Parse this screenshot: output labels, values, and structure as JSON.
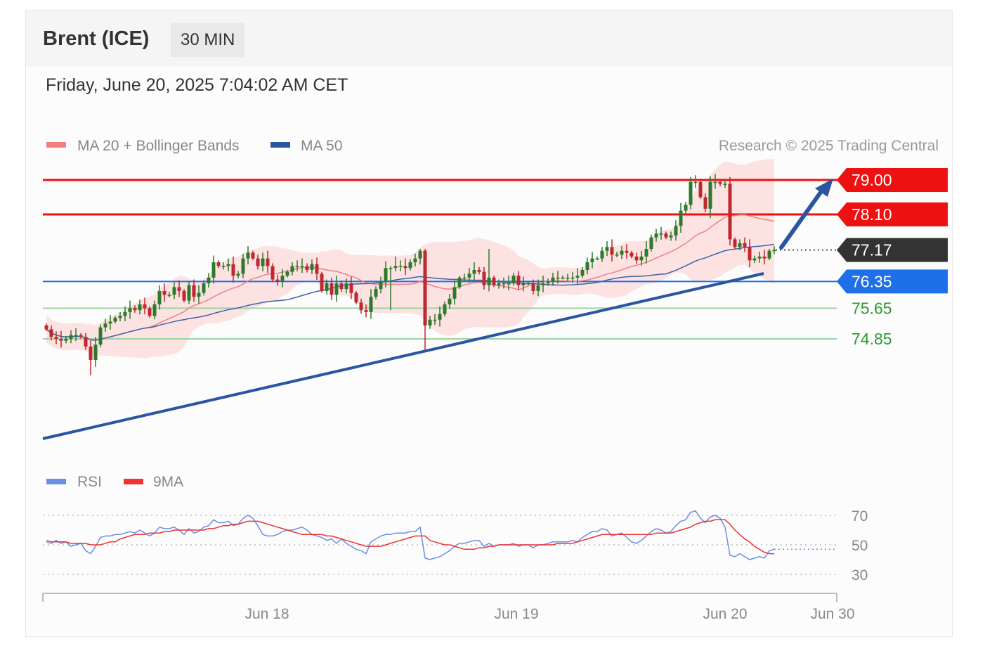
{
  "header": {
    "title": "Brent (ICE)",
    "interval": "30 MIN"
  },
  "timestamp": "Friday, June 20, 2025 7:04:02 AM CET",
  "legend": {
    "ma20": "MA 20 + Bollinger Bands",
    "ma50": "MA 50",
    "copyright": "Research © 2025 Trading Central"
  },
  "rsi_legend": {
    "rsi": "RSI",
    "ma9": "9MA"
  },
  "colors": {
    "resistance": "#ee1111",
    "last": "#333333",
    "pivot": "#1f6fe8",
    "support": "#2e9a2e",
    "support_line": "#9fd49f",
    "trend": "#2b55a0",
    "candle_up": "#2d7a2d",
    "candle_down": "#c0282f",
    "band": "#fdd9d9",
    "ma20": "#f08080",
    "ma50": "#3f62a8",
    "rsi": "#6b8fe6",
    "rsi_ma": "#ee3333"
  },
  "chart_data": [
    {
      "type": "candlestick",
      "title": "Brent (ICE) 30 MIN",
      "ylim": [
        73.0,
        79.4
      ],
      "x_tick_labels": [
        "Jun 18",
        "Jun 19",
        "Jun 20",
        "Jun 30"
      ],
      "levels": [
        {
          "kind": "resistance",
          "label": "79.00",
          "value": 79.0
        },
        {
          "kind": "resistance",
          "label": "78.10",
          "value": 78.1
        },
        {
          "kind": "last",
          "label": "77.17",
          "value": 77.17
        },
        {
          "kind": "pivot",
          "label": "76.35",
          "value": 76.35
        },
        {
          "kind": "support",
          "label": "75.65",
          "value": 75.65
        },
        {
          "kind": "support",
          "label": "74.85",
          "value": 74.85
        }
      ],
      "close": [
        75.1,
        74.9,
        74.85,
        74.8,
        74.85,
        74.95,
        74.95,
        74.9,
        74.65,
        74.3,
        74.7,
        75.15,
        75.25,
        75.3,
        75.4,
        75.45,
        75.55,
        75.65,
        75.6,
        75.75,
        75.65,
        75.45,
        75.75,
        76.1,
        76.0,
        76.0,
        76.2,
        76.1,
        75.85,
        76.25,
        75.95,
        76.05,
        76.3,
        76.45,
        76.85,
        76.75,
        76.75,
        76.8,
        76.5,
        76.55,
        76.95,
        77.1,
        76.95,
        76.75,
        76.95,
        76.75,
        76.4,
        76.35,
        76.5,
        76.6,
        76.75,
        76.75,
        76.75,
        76.65,
        76.8,
        76.55,
        76.1,
        76.3,
        76.0,
        76.3,
        76.15,
        76.3,
        76.05,
        75.8,
        75.6,
        75.55,
        75.95,
        76.15,
        76.35,
        76.7,
        76.7,
        76.75,
        76.75,
        76.7,
        76.85,
        76.95,
        77.15,
        75.2,
        75.35,
        75.35,
        75.5,
        75.75,
        75.9,
        76.2,
        76.45,
        76.45,
        76.55,
        76.65,
        76.6,
        76.25,
        76.45,
        76.25,
        76.3,
        76.3,
        76.3,
        76.5,
        76.25,
        76.3,
        76.3,
        76.1,
        76.25,
        76.3,
        76.35,
        76.45,
        76.45,
        76.45,
        76.45,
        76.45,
        76.5,
        76.65,
        76.85,
        76.95,
        76.95,
        77.15,
        77.25,
        77.05,
        77.05,
        77.15,
        77.1,
        77.0,
        76.9,
        77.0,
        77.2,
        77.5,
        77.6,
        77.6,
        77.5,
        77.55,
        77.8,
        78.2,
        78.35,
        78.95,
        78.95,
        78.55,
        78.25,
        78.95,
        78.95,
        78.9,
        78.9,
        77.45,
        77.25,
        77.35,
        77.25,
        76.9,
        76.95,
        77.0,
        76.95,
        77.15,
        77.17
      ],
      "rsi": [
        52,
        51,
        53,
        51,
        52,
        49,
        50,
        51,
        46,
        44,
        49,
        55,
        56,
        56,
        57,
        57,
        58,
        59,
        58,
        60,
        58,
        56,
        58,
        62,
        61,
        61,
        62,
        60,
        57,
        61,
        58,
        59,
        62,
        63,
        67,
        65,
        65,
        66,
        63,
        64,
        68,
        70,
        68,
        63,
        57,
        56,
        56,
        57,
        59,
        60,
        60,
        61,
        62,
        60,
        57,
        56,
        55,
        53,
        54,
        51,
        54,
        51,
        49,
        47,
        46,
        44,
        52,
        54,
        56,
        57,
        57,
        58,
        58,
        58,
        59,
        59,
        62,
        41,
        40,
        41,
        42,
        44,
        46,
        49,
        51,
        51,
        52,
        53,
        53,
        49,
        51,
        49,
        50,
        50,
        50,
        51,
        49,
        50,
        50,
        48,
        50,
        50,
        51,
        52,
        52,
        52,
        52,
        53,
        52,
        55,
        57,
        59,
        59,
        61,
        60,
        56,
        57,
        58,
        55,
        52,
        51,
        53,
        56,
        59,
        61,
        60,
        58,
        59,
        63,
        66,
        67,
        72,
        73,
        68,
        65,
        69,
        70,
        68,
        62,
        43,
        42,
        44,
        42,
        40,
        41,
        42,
        41,
        46,
        47
      ],
      "rsi_9ma": [
        53,
        52,
        52,
        52,
        52,
        51,
        51,
        51,
        51,
        50,
        50,
        50,
        51,
        52,
        52,
        54,
        55,
        56,
        57,
        57,
        57,
        58,
        58,
        58,
        59,
        59,
        60,
        60,
        60,
        60,
        60,
        60,
        60,
        61,
        61,
        62,
        63,
        63,
        64,
        64,
        65,
        66,
        66,
        66,
        65,
        64,
        63,
        62,
        61,
        60,
        59,
        58,
        57,
        57,
        57,
        57,
        57,
        56,
        56,
        55,
        54,
        53,
        52,
        51,
        50,
        49,
        49,
        49,
        49,
        50,
        51,
        52,
        53,
        54,
        55,
        56,
        56,
        56,
        53,
        52,
        51,
        50,
        50,
        49,
        48,
        47,
        47,
        47,
        48,
        48,
        49,
        49,
        50,
        50,
        50,
        50,
        50,
        50,
        50,
        50,
        50,
        50,
        50,
        50,
        51,
        51,
        51,
        51,
        52,
        53,
        54,
        55,
        56,
        57,
        57,
        57,
        57,
        57,
        57,
        57,
        57,
        57,
        57,
        57,
        58,
        58,
        58,
        58,
        59,
        60,
        61,
        62,
        64,
        65,
        66,
        66,
        67,
        67,
        67,
        64,
        60,
        57,
        54,
        52,
        49,
        47,
        45,
        44,
        44
      ],
      "rsi_ylim": [
        30,
        70
      ],
      "rsi_ticks": [
        "70",
        "50",
        "30"
      ]
    }
  ]
}
